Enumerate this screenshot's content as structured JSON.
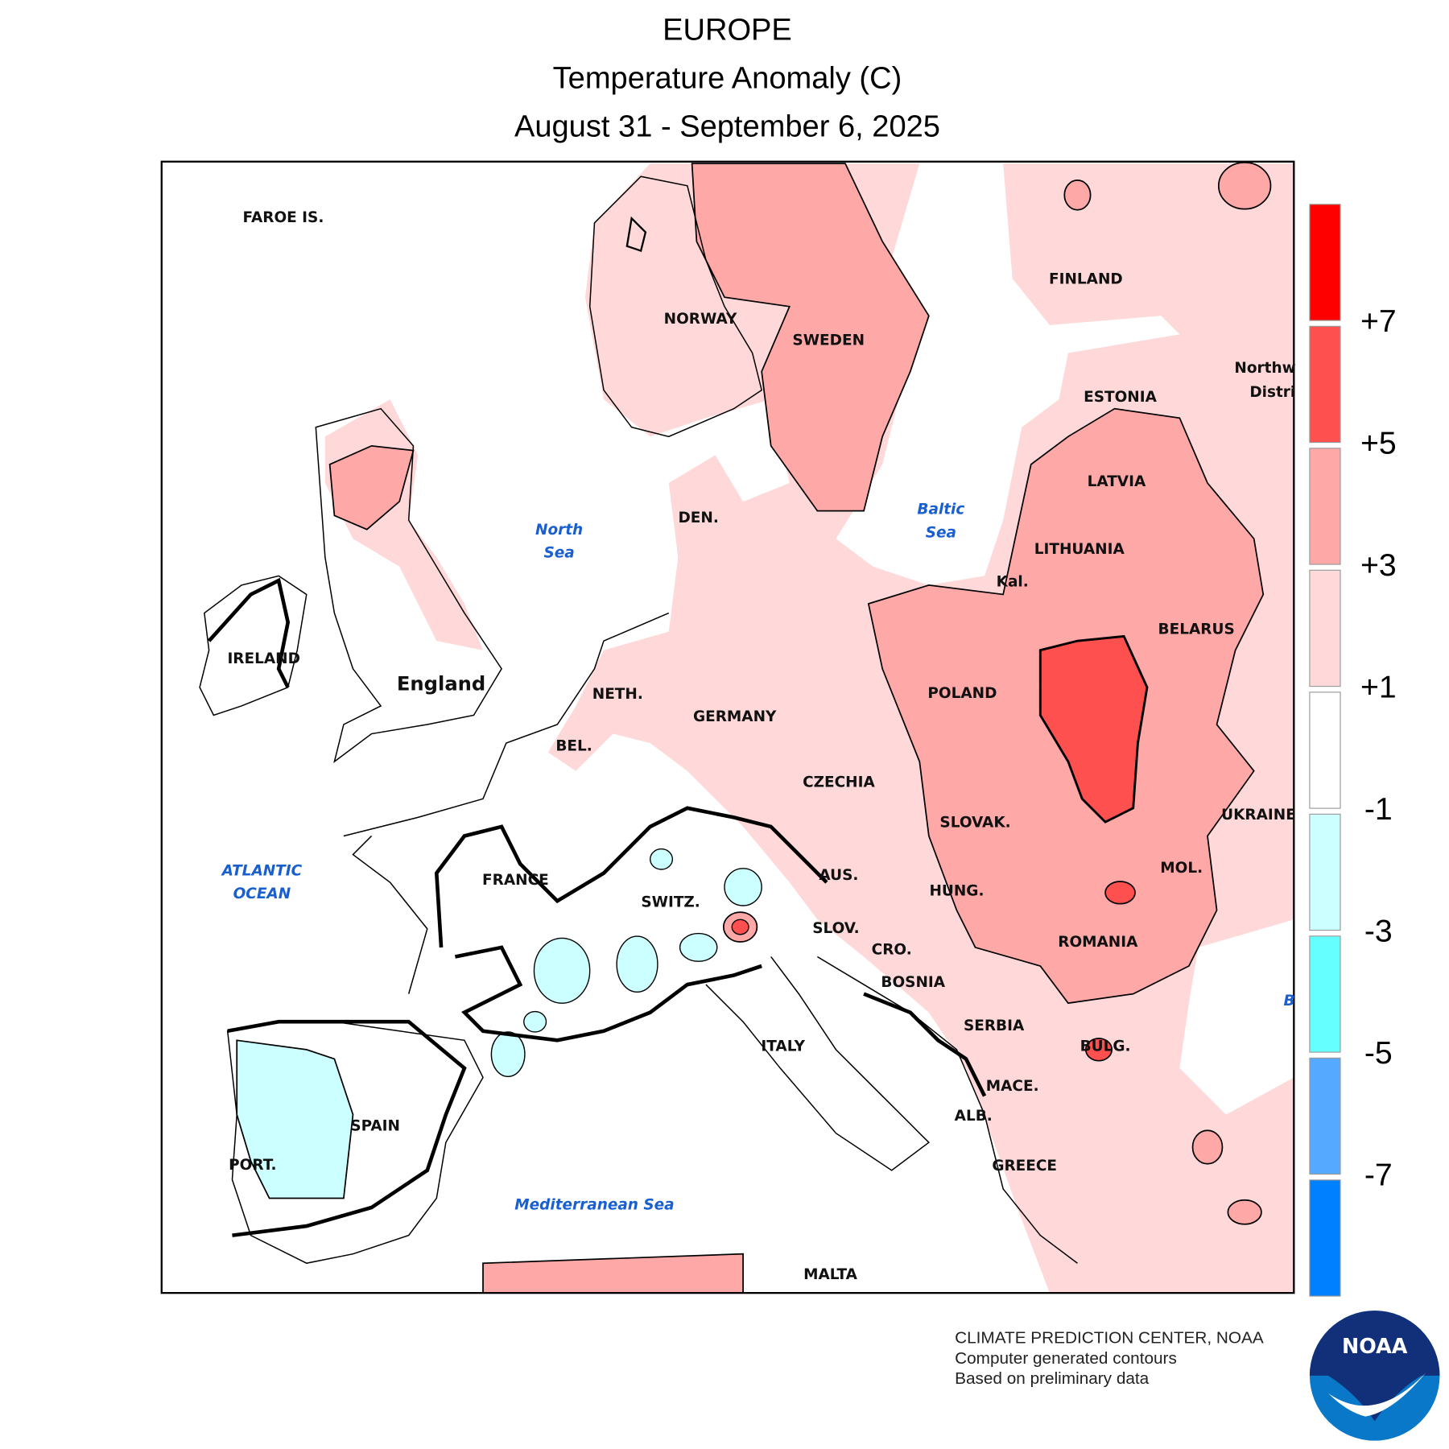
{
  "title": {
    "region": "EUROPE",
    "variable": "Temperature Anomaly (C)",
    "period": "August 31 - September 6, 2025"
  },
  "country_labels": [
    "FAROE IS.",
    "NORWAY",
    "SWEDEN",
    "FINLAND",
    "Northw",
    "Distri",
    "ESTONIA",
    "LATVIA",
    "LITHUANIA",
    "Kal.",
    "BELARUS",
    "POLAND",
    "GERMANY",
    "NETH.",
    "BEL.",
    "CZECHIA",
    "SLOVAK.",
    "UKRAINE",
    "MOL.",
    "AUS.",
    "HUNG.",
    "FRANCE",
    "SWITZ.",
    "SLOV.",
    "CRO.",
    "ROMANIA",
    "BOSNIA",
    "SERBIA",
    "BULG.",
    "ITALY",
    "MACE.",
    "ALB.",
    "SPAIN",
    "PORT.",
    "GREECE",
    "MALTA",
    "IRELAND",
    "England",
    "DEN."
  ],
  "sea_labels": [
    [
      "North",
      "Sea"
    ],
    [
      "Baltic",
      "Sea"
    ],
    [
      "ATLANTIC",
      "OCEAN"
    ],
    [
      "Mediterranean Sea"
    ],
    [
      "B"
    ]
  ],
  "legend": {
    "colors": [
      "#ff0000",
      "#ff5050",
      "#ffa8a8",
      "#ffd9d9",
      "#ffffff",
      "#ccffff",
      "#66ffff",
      "#55aaff",
      "#0080ff"
    ],
    "ticks": [
      {
        "value": 7,
        "label": "+7"
      },
      {
        "value": 5,
        "label": "+5"
      },
      {
        "value": 3,
        "label": "+3"
      },
      {
        "value": 1,
        "label": "+1"
      },
      -1,
      -3,
      -5,
      -7
    ]
  },
  "footer": [
    "CLIMATE PREDICTION CENTER, NOAA",
    "Computer generated contours",
    "Based on preliminary data"
  ],
  "logo": {
    "text": "NOAA"
  }
}
